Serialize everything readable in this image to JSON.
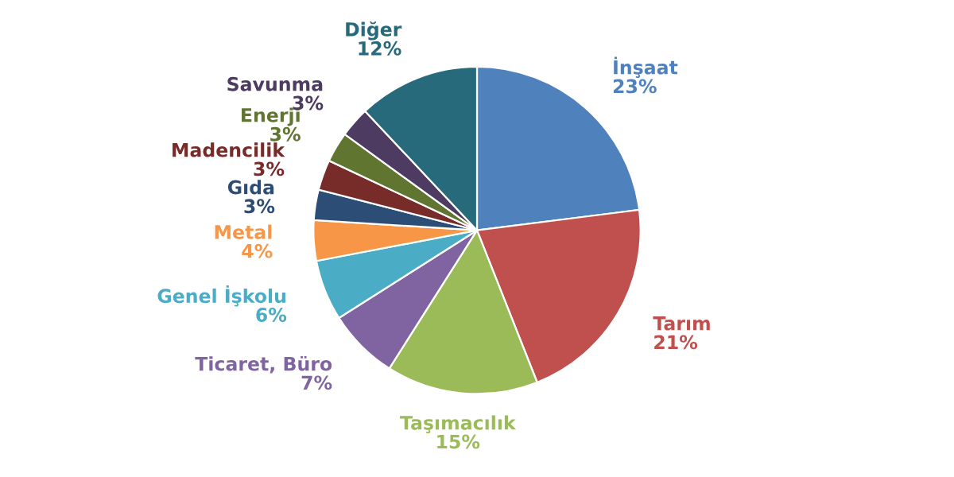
{
  "chart_data": {
    "type": "pie",
    "categories": [
      "İnşaat",
      "Tarım",
      "Taşımacılık",
      "Ticaret, Büro",
      "Genel İşkolu",
      "Metal",
      "Gıda",
      "Madencilik",
      "Enerji",
      "Savunma",
      "Diğer"
    ],
    "values": [
      23,
      21,
      15,
      7,
      6,
      4,
      3,
      3,
      3,
      3,
      12
    ],
    "value_labels": [
      "23%",
      "21%",
      "15%",
      "7%",
      "6%",
      "4%",
      "3%",
      "3%",
      "3%",
      "3%",
      "12%"
    ],
    "colors": [
      "#4f81bd",
      "#c0504d",
      "#9bbb59",
      "#8064a2",
      "#4bacc6",
      "#f79646",
      "#2c4d75",
      "#772c2a",
      "#5f7530",
      "#4d3b62",
      "#276a7c"
    ]
  }
}
